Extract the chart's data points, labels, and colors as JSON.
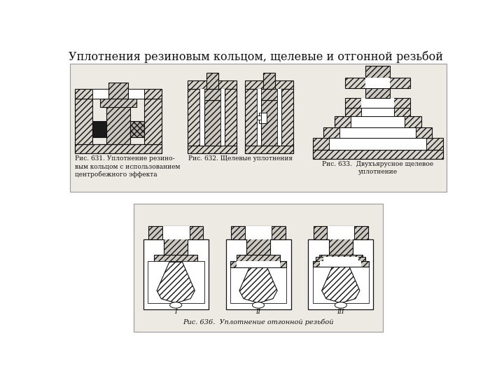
{
  "title": "Уплотнения резиновым кольцом, щелевые и отгонной резьбой",
  "title_fontsize": 11.5,
  "bg_color": "#ffffff",
  "panel_bg": "#ede9e3",
  "hatch_color": "#444444",
  "line_color": "#111111",
  "caption_631": "Рис. 631. Уплотнение резино-\nвым кольцом с использованием\nцентробежного эффекта",
  "caption_632": "Рис. 632. Щелевые уплотнения",
  "caption_633": "Рис. 633.  Двухъярусное щелевое\nуплотнение",
  "caption_636": "Рис. 636.  Уплотнение отгонной резьбой",
  "caption_fontsize": 6.5
}
